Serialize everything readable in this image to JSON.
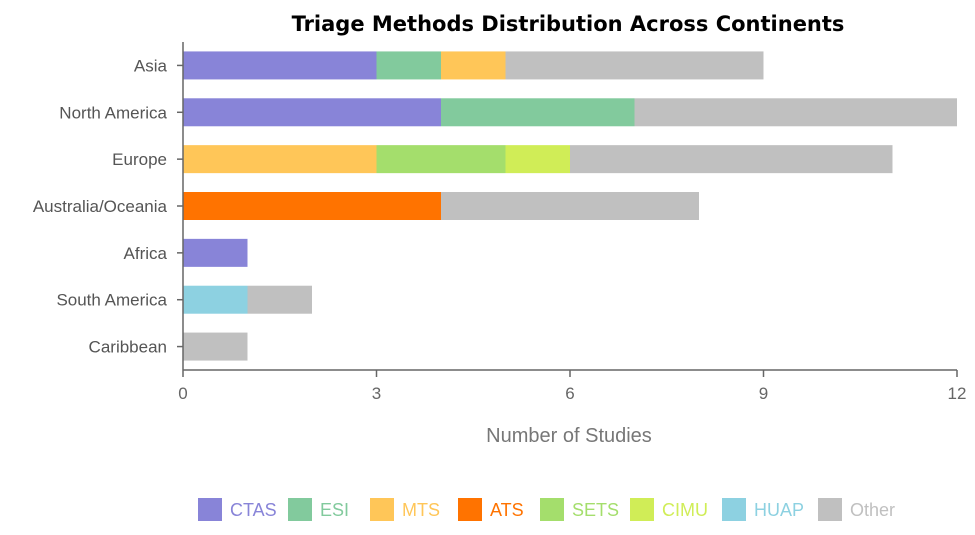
{
  "chart_data": {
    "type": "bar",
    "orientation": "horizontal",
    "stacked": true,
    "title": "Triage Methods Distribution Across Continents",
    "xlabel": "Number of Studies",
    "ylabel": "",
    "xlim": [
      0,
      12
    ],
    "xticks": [
      0,
      3,
      6,
      9,
      12
    ],
    "grid": false,
    "legend_position": "bottom",
    "categories": [
      "Asia",
      "North America",
      "Europe",
      "Australia/Oceania",
      "Africa",
      "South America",
      "Caribbean"
    ],
    "series": [
      {
        "name": "CTAS",
        "color": "#8884d8",
        "values": [
          3,
          4,
          0,
          0,
          1,
          0,
          0
        ]
      },
      {
        "name": "ESI",
        "color": "#82ca9d",
        "values": [
          1,
          3,
          0,
          0,
          0,
          0,
          0
        ]
      },
      {
        "name": "MTS",
        "color": "#ffc658",
        "values": [
          1,
          0,
          3,
          0,
          0,
          0,
          0
        ]
      },
      {
        "name": "ATS",
        "color": "#ff7300",
        "values": [
          0,
          0,
          0,
          4,
          0,
          0,
          0
        ]
      },
      {
        "name": "SETS",
        "color": "#a4de6c",
        "values": [
          0,
          0,
          2,
          0,
          0,
          0,
          0
        ]
      },
      {
        "name": "CIMU",
        "color": "#d0ed57",
        "values": [
          0,
          0,
          1,
          0,
          0,
          0,
          0
        ]
      },
      {
        "name": "HUAP",
        "color": "#8dd1e1",
        "values": [
          0,
          0,
          0,
          0,
          0,
          1,
          0
        ]
      },
      {
        "name": "Other",
        "color": "#c0c0c0",
        "values": [
          4,
          5,
          5,
          4,
          0,
          1,
          1
        ]
      }
    ]
  }
}
